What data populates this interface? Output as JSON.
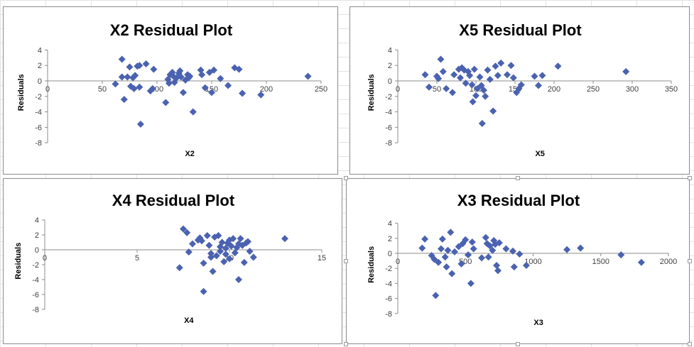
{
  "chart_data": [
    {
      "type": "scatter",
      "title": "X2  Residual Plot",
      "xlabel": "X2",
      "ylabel": "Residuals",
      "xlim": [
        0,
        250
      ],
      "ylim": [
        -8,
        4
      ],
      "xticks": [
        0,
        50,
        100,
        150,
        200,
        250
      ],
      "yticks": [
        4,
        2,
        0,
        -2,
        -4,
        -6,
        -8
      ],
      "marker_color": "#4a62b0",
      "points": [
        {
          "x": 62,
          "y": -0.4
        },
        {
          "x": 68,
          "y": 2.8
        },
        {
          "x": 68,
          "y": 0.5
        },
        {
          "x": 70,
          "y": -2.4
        },
        {
          "x": 73,
          "y": 0.5
        },
        {
          "x": 75,
          "y": 1.8
        },
        {
          "x": 76,
          "y": -0.7
        },
        {
          "x": 78,
          "y": 0.4
        },
        {
          "x": 79,
          "y": -1.0
        },
        {
          "x": 80,
          "y": 0.7
        },
        {
          "x": 82,
          "y": 1.9
        },
        {
          "x": 84,
          "y": 2.0
        },
        {
          "x": 84,
          "y": -0.8
        },
        {
          "x": 85,
          "y": -5.6
        },
        {
          "x": 90,
          "y": 2.2
        },
        {
          "x": 94,
          "y": -1.3
        },
        {
          "x": 96,
          "y": -1.0
        },
        {
          "x": 97,
          "y": 1.5
        },
        {
          "x": 108,
          "y": -2.8
        },
        {
          "x": 110,
          "y": 0.2
        },
        {
          "x": 111,
          "y": -0.3
        },
        {
          "x": 112,
          "y": 0.8
        },
        {
          "x": 114,
          "y": 1.1
        },
        {
          "x": 115,
          "y": 0.6
        },
        {
          "x": 116,
          "y": -0.2
        },
        {
          "x": 118,
          "y": 0.4
        },
        {
          "x": 120,
          "y": 1.0
        },
        {
          "x": 121,
          "y": 1.3
        },
        {
          "x": 122,
          "y": 0.5
        },
        {
          "x": 124,
          "y": -1.5
        },
        {
          "x": 126,
          "y": 0.1
        },
        {
          "x": 128,
          "y": 0.8
        },
        {
          "x": 129,
          "y": 0.4
        },
        {
          "x": 130,
          "y": 0.6
        },
        {
          "x": 133,
          "y": -4.0
        },
        {
          "x": 140,
          "y": 1.4
        },
        {
          "x": 141,
          "y": 0.8
        },
        {
          "x": 144,
          "y": -0.9
        },
        {
          "x": 148,
          "y": 1.1
        },
        {
          "x": 150,
          "y": -1.5
        },
        {
          "x": 152,
          "y": 1.4
        },
        {
          "x": 158,
          "y": 0.3
        },
        {
          "x": 165,
          "y": -0.6
        },
        {
          "x": 171,
          "y": 1.7
        },
        {
          "x": 175,
          "y": 1.5
        },
        {
          "x": 178,
          "y": -1.6
        },
        {
          "x": 195,
          "y": -1.8
        },
        {
          "x": 238,
          "y": 0.6
        }
      ]
    },
    {
      "type": "scatter",
      "title": "X5  Residual Plot",
      "xlabel": "X5",
      "ylabel": "Residuals",
      "xlim": [
        0,
        350
      ],
      "ylim": [
        -8,
        4
      ],
      "xticks": [
        0,
        50,
        100,
        150,
        200,
        250,
        300,
        350
      ],
      "yticks": [
        4,
        2,
        0,
        -2,
        -4,
        -6,
        -8
      ],
      "marker_color": "#4a62b0",
      "points": [
        {
          "x": 35,
          "y": 0.8
        },
        {
          "x": 40,
          "y": -0.8
        },
        {
          "x": 50,
          "y": 0.6
        },
        {
          "x": 52,
          "y": 0.3
        },
        {
          "x": 55,
          "y": 2.8
        },
        {
          "x": 58,
          "y": 1.2
        },
        {
          "x": 62,
          "y": -1.0
        },
        {
          "x": 70,
          "y": -1.5
        },
        {
          "x": 72,
          "y": 0.8
        },
        {
          "x": 78,
          "y": 1.5
        },
        {
          "x": 80,
          "y": 0.4
        },
        {
          "x": 82,
          "y": 1.7
        },
        {
          "x": 85,
          "y": 1.4
        },
        {
          "x": 87,
          "y": -0.3
        },
        {
          "x": 90,
          "y": 1.2
        },
        {
          "x": 92,
          "y": 0.7
        },
        {
          "x": 95,
          "y": -0.5
        },
        {
          "x": 96,
          "y": -2.7
        },
        {
          "x": 98,
          "y": 1.5
        },
        {
          "x": 100,
          "y": -1.9
        },
        {
          "x": 102,
          "y": -1.0
        },
        {
          "x": 105,
          "y": 0.5
        },
        {
          "x": 107,
          "y": -0.6
        },
        {
          "x": 108,
          "y": -5.5
        },
        {
          "x": 110,
          "y": -1.2
        },
        {
          "x": 112,
          "y": -2.0
        },
        {
          "x": 115,
          "y": 1.4
        },
        {
          "x": 118,
          "y": 0.2
        },
        {
          "x": 122,
          "y": -3.9
        },
        {
          "x": 125,
          "y": 1.9
        },
        {
          "x": 128,
          "y": 0.7
        },
        {
          "x": 132,
          "y": 2.3
        },
        {
          "x": 140,
          "y": 0.8
        },
        {
          "x": 145,
          "y": 2.0
        },
        {
          "x": 148,
          "y": 0.4
        },
        {
          "x": 152,
          "y": -1.5
        },
        {
          "x": 155,
          "y": -1.0
        },
        {
          "x": 158,
          "y": -0.5
        },
        {
          "x": 175,
          "y": 0.6
        },
        {
          "x": 180,
          "y": -0.6
        },
        {
          "x": 185,
          "y": 0.7
        },
        {
          "x": 205,
          "y": 1.9
        },
        {
          "x": 292,
          "y": 1.2
        }
      ]
    },
    {
      "type": "scatter",
      "title": "X4  Residual Plot",
      "xlabel": "X4",
      "ylabel": "Residuals",
      "xlim": [
        0,
        15
      ],
      "ylim": [
        -8,
        4
      ],
      "xticks": [
        0,
        5,
        10,
        15
      ],
      "yticks": [
        4,
        2,
        0,
        -2,
        -4,
        -6,
        -8
      ],
      "marker_color": "#4a62b0",
      "points": [
        {
          "x": 7.3,
          "y": -2.4
        },
        {
          "x": 7.5,
          "y": 2.8
        },
        {
          "x": 7.7,
          "y": 2.3
        },
        {
          "x": 7.8,
          "y": -0.3
        },
        {
          "x": 8.0,
          "y": 0.8
        },
        {
          "x": 8.3,
          "y": 1.3
        },
        {
          "x": 8.4,
          "y": 1.6
        },
        {
          "x": 8.5,
          "y": 1.2
        },
        {
          "x": 8.6,
          "y": -1.8
        },
        {
          "x": 8.6,
          "y": -5.6
        },
        {
          "x": 8.8,
          "y": 1.9
        },
        {
          "x": 8.9,
          "y": 0.6
        },
        {
          "x": 9.0,
          "y": -0.5
        },
        {
          "x": 9.0,
          "y": -1.0
        },
        {
          "x": 9.1,
          "y": -2.9
        },
        {
          "x": 9.2,
          "y": 1.7
        },
        {
          "x": 9.3,
          "y": -0.8
        },
        {
          "x": 9.4,
          "y": 1.9
        },
        {
          "x": 9.5,
          "y": 0.4
        },
        {
          "x": 9.5,
          "y": -0.2
        },
        {
          "x": 9.6,
          "y": 1.0
        },
        {
          "x": 9.7,
          "y": -1.6
        },
        {
          "x": 9.8,
          "y": 0.2
        },
        {
          "x": 9.8,
          "y": -0.6
        },
        {
          "x": 9.9,
          "y": 0.9
        },
        {
          "x": 10.0,
          "y": 1.3
        },
        {
          "x": 10.0,
          "y": -1.2
        },
        {
          "x": 10.1,
          "y": 0.5
        },
        {
          "x": 10.2,
          "y": 1.5
        },
        {
          "x": 10.3,
          "y": -0.4
        },
        {
          "x": 10.4,
          "y": 0.3
        },
        {
          "x": 10.5,
          "y": 0.8
        },
        {
          "x": 10.5,
          "y": -4.0
        },
        {
          "x": 10.6,
          "y": 1.5
        },
        {
          "x": 10.7,
          "y": 0.6
        },
        {
          "x": 10.8,
          "y": -1.7
        },
        {
          "x": 10.9,
          "y": 0.9
        },
        {
          "x": 11.0,
          "y": 1.1
        },
        {
          "x": 11.1,
          "y": -0.2
        },
        {
          "x": 11.3,
          "y": -1.0
        },
        {
          "x": 13.0,
          "y": 1.5
        }
      ]
    },
    {
      "type": "scatter",
      "title": "X3  Residual Plot",
      "xlabel": "X3",
      "ylabel": "Residuals",
      "xlim": [
        0,
        2000
      ],
      "ylim": [
        -8,
        4
      ],
      "xticks": [
        0,
        500,
        1000,
        1500,
        2000
      ],
      "yticks": [
        4,
        2,
        0,
        -2,
        -4,
        -6,
        -8
      ],
      "marker_color": "#4a62b0",
      "points": [
        {
          "x": 180,
          "y": 0.7
        },
        {
          "x": 200,
          "y": 1.9
        },
        {
          "x": 250,
          "y": -0.3
        },
        {
          "x": 270,
          "y": -0.8
        },
        {
          "x": 280,
          "y": -5.6
        },
        {
          "x": 300,
          "y": -1.2
        },
        {
          "x": 320,
          "y": 0.6
        },
        {
          "x": 330,
          "y": 1.9
        },
        {
          "x": 350,
          "y": -0.5
        },
        {
          "x": 360,
          "y": -1.8
        },
        {
          "x": 370,
          "y": 0.4
        },
        {
          "x": 390,
          "y": 2.8
        },
        {
          "x": 400,
          "y": -2.7
        },
        {
          "x": 420,
          "y": 0.2
        },
        {
          "x": 450,
          "y": 0.9
        },
        {
          "x": 470,
          "y": -1.4
        },
        {
          "x": 480,
          "y": 1.3
        },
        {
          "x": 500,
          "y": 1.8
        },
        {
          "x": 520,
          "y": -0.2
        },
        {
          "x": 540,
          "y": -4.0
        },
        {
          "x": 550,
          "y": 1.5
        },
        {
          "x": 560,
          "y": 0.6
        },
        {
          "x": 620,
          "y": -0.6
        },
        {
          "x": 650,
          "y": 2.1
        },
        {
          "x": 660,
          "y": 1.3
        },
        {
          "x": 670,
          "y": -0.5
        },
        {
          "x": 680,
          "y": 1.0
        },
        {
          "x": 700,
          "y": 0.4
        },
        {
          "x": 710,
          "y": 1.7
        },
        {
          "x": 720,
          "y": 1.2
        },
        {
          "x": 730,
          "y": -1.6
        },
        {
          "x": 740,
          "y": -2.3
        },
        {
          "x": 750,
          "y": 1.4
        },
        {
          "x": 800,
          "y": 0.6
        },
        {
          "x": 850,
          "y": 0.3
        },
        {
          "x": 860,
          "y": -1.8
        },
        {
          "x": 900,
          "y": -0.1
        },
        {
          "x": 950,
          "y": -1.6
        },
        {
          "x": 1250,
          "y": 0.5
        },
        {
          "x": 1350,
          "y": 0.7
        },
        {
          "x": 1650,
          "y": -0.2
        },
        {
          "x": 1800,
          "y": -1.2
        }
      ]
    }
  ]
}
